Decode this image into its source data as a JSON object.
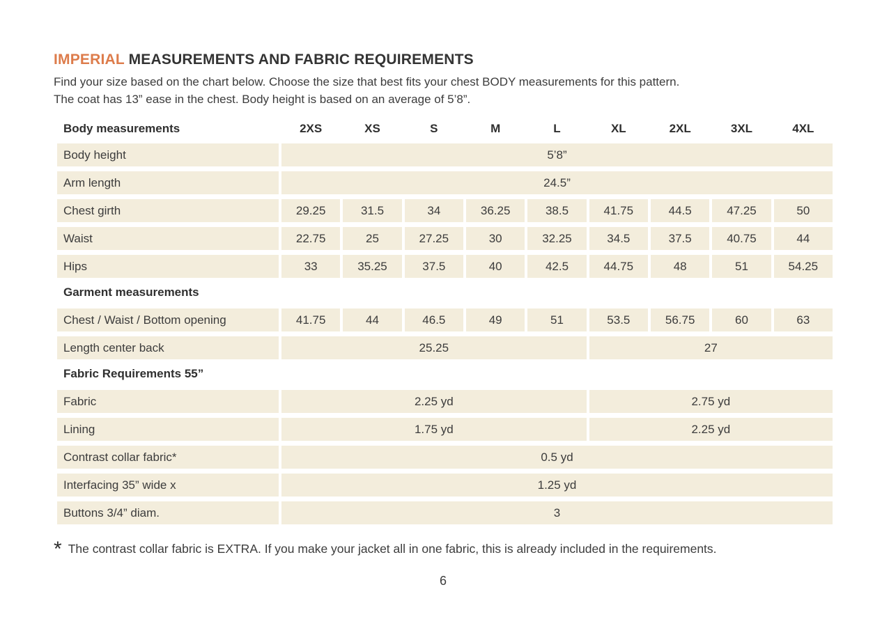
{
  "header": {
    "title_highlight": "IMPERIAL",
    "title_rest": " MEASUREMENTS AND FABRIC REQUIREMENTS",
    "intro_line1": "Find your size based on the chart below. Choose the size that best fits your chest BODY measurements for this pattern.",
    "intro_line2": "The coat has 13” ease in the chest. Body height is based on an average of 5’8”."
  },
  "table": {
    "columns_label": "Body measurements",
    "sizes": [
      "2XS",
      "XS",
      "S",
      "M",
      "L",
      "XL",
      "2XL",
      "3XL",
      "4XL"
    ],
    "rows": [
      {
        "type": "data",
        "label": "Body height",
        "cells": [
          {
            "text": "5’8”",
            "span": 9
          }
        ]
      },
      {
        "type": "data",
        "label": "Arm length",
        "cells": [
          {
            "text": "24.5”",
            "span": 9
          }
        ]
      },
      {
        "type": "data",
        "label": "Chest girth",
        "cells": [
          {
            "text": "29.25",
            "span": 1
          },
          {
            "text": "31.5",
            "span": 1
          },
          {
            "text": "34",
            "span": 1
          },
          {
            "text": "36.25",
            "span": 1
          },
          {
            "text": "38.5",
            "span": 1
          },
          {
            "text": "41.75",
            "span": 1
          },
          {
            "text": "44.5",
            "span": 1
          },
          {
            "text": "47.25",
            "span": 1
          },
          {
            "text": "50",
            "span": 1
          }
        ]
      },
      {
        "type": "data",
        "label": "Waist",
        "cells": [
          {
            "text": "22.75",
            "span": 1
          },
          {
            "text": "25",
            "span": 1
          },
          {
            "text": "27.25",
            "span": 1
          },
          {
            "text": "30",
            "span": 1
          },
          {
            "text": "32.25",
            "span": 1
          },
          {
            "text": "34.5",
            "span": 1
          },
          {
            "text": "37.5",
            "span": 1
          },
          {
            "text": "40.75",
            "span": 1
          },
          {
            "text": "44",
            "span": 1
          }
        ]
      },
      {
        "type": "data",
        "label": "Hips",
        "cells": [
          {
            "text": "33",
            "span": 1
          },
          {
            "text": "35.25",
            "span": 1
          },
          {
            "text": "37.5",
            "span": 1
          },
          {
            "text": "40",
            "span": 1
          },
          {
            "text": "42.5",
            "span": 1
          },
          {
            "text": "44.75",
            "span": 1
          },
          {
            "text": "48",
            "span": 1
          },
          {
            "text": "51",
            "span": 1
          },
          {
            "text": "54.25",
            "span": 1
          }
        ]
      },
      {
        "type": "section",
        "label": "Garment measurements"
      },
      {
        "type": "data",
        "label": "Chest / Waist / Bottom opening",
        "cells": [
          {
            "text": "41.75",
            "span": 1
          },
          {
            "text": "44",
            "span": 1
          },
          {
            "text": "46.5",
            "span": 1
          },
          {
            "text": "49",
            "span": 1
          },
          {
            "text": "51",
            "span": 1
          },
          {
            "text": "53.5",
            "span": 1
          },
          {
            "text": "56.75",
            "span": 1
          },
          {
            "text": "60",
            "span": 1
          },
          {
            "text": "63",
            "span": 1
          }
        ]
      },
      {
        "type": "data",
        "label": "Length center back",
        "cells": [
          {
            "text": "25.25",
            "span": 5
          },
          {
            "text": "27",
            "span": 4
          }
        ]
      },
      {
        "type": "section",
        "label": "Fabric Requirements 55”"
      },
      {
        "type": "data",
        "label": "Fabric",
        "cells": [
          {
            "text": "2.25 yd",
            "span": 5
          },
          {
            "text": "2.75 yd",
            "span": 4
          }
        ]
      },
      {
        "type": "data",
        "label": "Lining",
        "cells": [
          {
            "text": "1.75 yd",
            "span": 5
          },
          {
            "text": "2.25 yd",
            "span": 4
          }
        ]
      },
      {
        "type": "data",
        "label": "Contrast collar fabric*",
        "cells": [
          {
            "text": "0.5 yd",
            "span": 9
          }
        ]
      },
      {
        "type": "data",
        "label": "Interfacing  35” wide x",
        "cells": [
          {
            "text": "1.25 yd",
            "span": 9
          }
        ]
      },
      {
        "type": "data",
        "label": "Buttons 3/4” diam.",
        "cells": [
          {
            "text": "3",
            "span": 9
          }
        ]
      }
    ]
  },
  "footnote": {
    "marker": "*",
    "text": "The contrast collar fabric is EXTRA. If you make your jacket all in one fabric, this is already included in the requirements."
  },
  "footer": {
    "page_number": "6"
  },
  "colors": {
    "accent_orange": "#DD7C4B",
    "cell_beige": "#F3EDDC",
    "text_dark": "#3C3C3C"
  }
}
